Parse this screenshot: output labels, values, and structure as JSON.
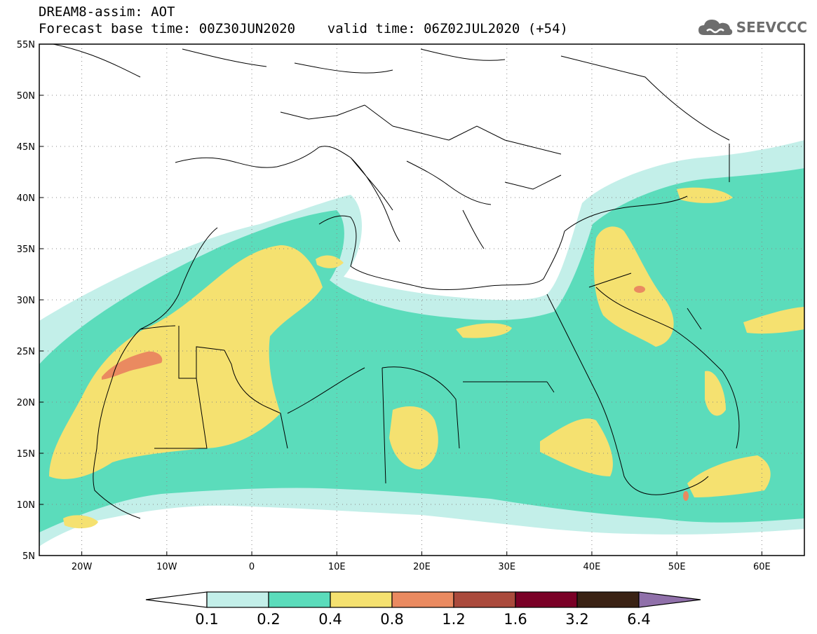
{
  "title": {
    "line1": "DREAM8-assim: AOT",
    "line2": "Forecast base time: 00Z30JUN2020    valid time: 06Z02JUL2020 (+54)"
  },
  "logo": {
    "text": "SEEVCCC",
    "icon": "cloud-icon",
    "color": "#6d6d6d"
  },
  "map": {
    "lon_range": [
      -25,
      65
    ],
    "lat_range": [
      5,
      55
    ],
    "lat_labels": [
      "55N",
      "50N",
      "45N",
      "40N",
      "35N",
      "30N",
      "25N",
      "20N",
      "15N",
      "10N",
      "5N"
    ],
    "lat_values": [
      55,
      50,
      45,
      40,
      35,
      30,
      25,
      20,
      15,
      10,
      5
    ],
    "lon_labels": [
      "20W",
      "10W",
      "0",
      "10E",
      "20E",
      "30E",
      "40E",
      "50E",
      "60E"
    ],
    "lon_values": [
      -20,
      -10,
      0,
      10,
      20,
      30,
      40,
      50,
      60
    ],
    "grid": "dotted"
  },
  "colorbar": {
    "colors": [
      "#c3efe9",
      "#5bdcbb",
      "#f5e170",
      "#ea8a60",
      "#aa4a3c",
      "#7a0026",
      "#3a2214",
      "#9070aa"
    ],
    "labels": [
      "0.1",
      "0.2",
      "0.4",
      "0.8",
      "1.2",
      "1.6",
      "3.2",
      "6.4"
    ]
  }
}
